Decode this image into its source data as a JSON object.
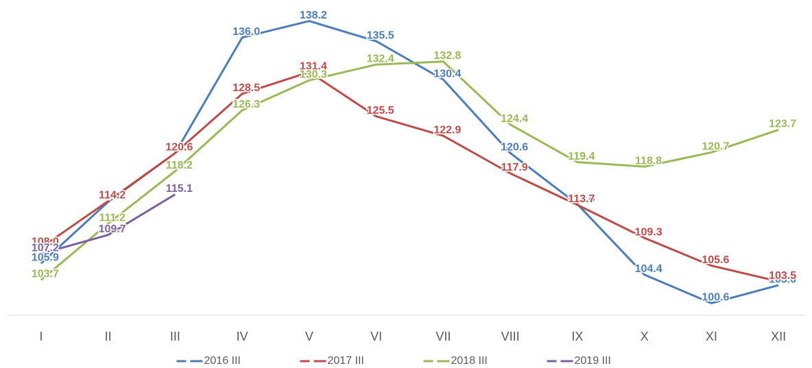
{
  "chart_data": {
    "type": "line",
    "categories": [
      "I",
      "II",
      "III",
      "IV",
      "V",
      "VI",
      "VII",
      "VIII",
      "IX",
      "X",
      "XI",
      "XII"
    ],
    "series": [
      {
        "name": "2016 III",
        "color": "#4a7ebb",
        "values": [
          105.9,
          114.1,
          120.6,
          136.0,
          138.2,
          135.5,
          130.4,
          120.6,
          113.8,
          104.4,
          100.6,
          103.0
        ]
      },
      {
        "name": "2017 III",
        "color": "#be4b48",
        "values": [
          108.0,
          114.2,
          120.6,
          128.5,
          131.4,
          125.5,
          122.9,
          117.9,
          113.7,
          109.3,
          105.6,
          103.5
        ]
      },
      {
        "name": "2018 III",
        "color": "#98b954",
        "values": [
          103.7,
          111.2,
          118.2,
          126.3,
          130.3,
          132.4,
          132.8,
          124.4,
          119.4,
          118.8,
          120.7,
          123.7
        ]
      },
      {
        "name": "2019 III",
        "color": "#7d60a0",
        "values": [
          107.2,
          109.7,
          115.1,
          null,
          null,
          null,
          null,
          null,
          null,
          null,
          null,
          null
        ]
      }
    ],
    "ylim": [
      99,
      141
    ],
    "legend": "bottom"
  }
}
